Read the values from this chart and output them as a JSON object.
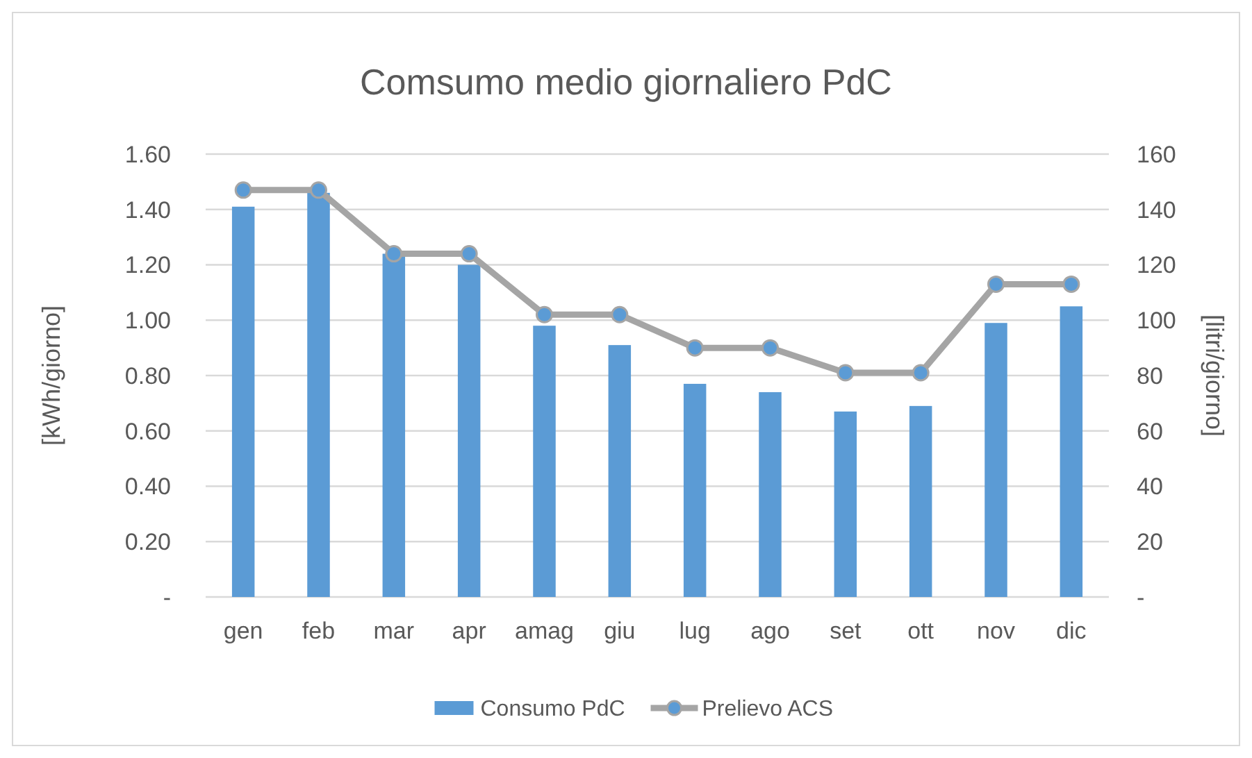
{
  "chart_data": {
    "type": "bar",
    "title": "Comsumo medio giornaliero PdC",
    "categories": [
      "gen",
      "feb",
      "mar",
      "apr",
      "amag",
      "giu",
      "lug",
      "ago",
      "set",
      "ott",
      "nov",
      "dic"
    ],
    "series": [
      {
        "name": "Consumo PdC",
        "color": "#5b9bd5",
        "values": [
          1.41,
          1.46,
          1.24,
          1.2,
          0.98,
          0.91,
          0.77,
          0.74,
          0.67,
          0.69,
          0.99,
          1.05
        ]
      },
      {
        "name": "Prelievo ACS",
        "type": "line",
        "axis": "y2",
        "color": "#a5a5a5",
        "marker": "circle",
        "values": [
          147,
          147,
          124,
          124,
          102,
          102,
          90,
          90,
          81,
          81,
          113,
          113
        ]
      }
    ],
    "ylabel": "[kWh/giorno]",
    "y2label": "[litri/giorno]",
    "ylim": [
      0,
      1.6
    ],
    "yticks": [
      {
        "value": 0,
        "label": "-"
      },
      {
        "value": 0.2,
        "label": "0.20"
      },
      {
        "value": 0.4,
        "label": "0.40"
      },
      {
        "value": 0.6,
        "label": "0.60"
      },
      {
        "value": 0.8,
        "label": "0.80"
      },
      {
        "value": 1,
        "label": "1.00"
      },
      {
        "value": 1.2,
        "label": "1.20"
      },
      {
        "value": 1.4,
        "label": "1.40"
      },
      {
        "value": 1.6,
        "label": "1.60"
      }
    ],
    "y2lim": [
      0,
      160
    ],
    "y2ticks": [
      {
        "value": 0,
        "label": "-"
      },
      20,
      40,
      60,
      80,
      100,
      120,
      140,
      160
    ],
    "grid": "y",
    "legend": "bottom"
  }
}
